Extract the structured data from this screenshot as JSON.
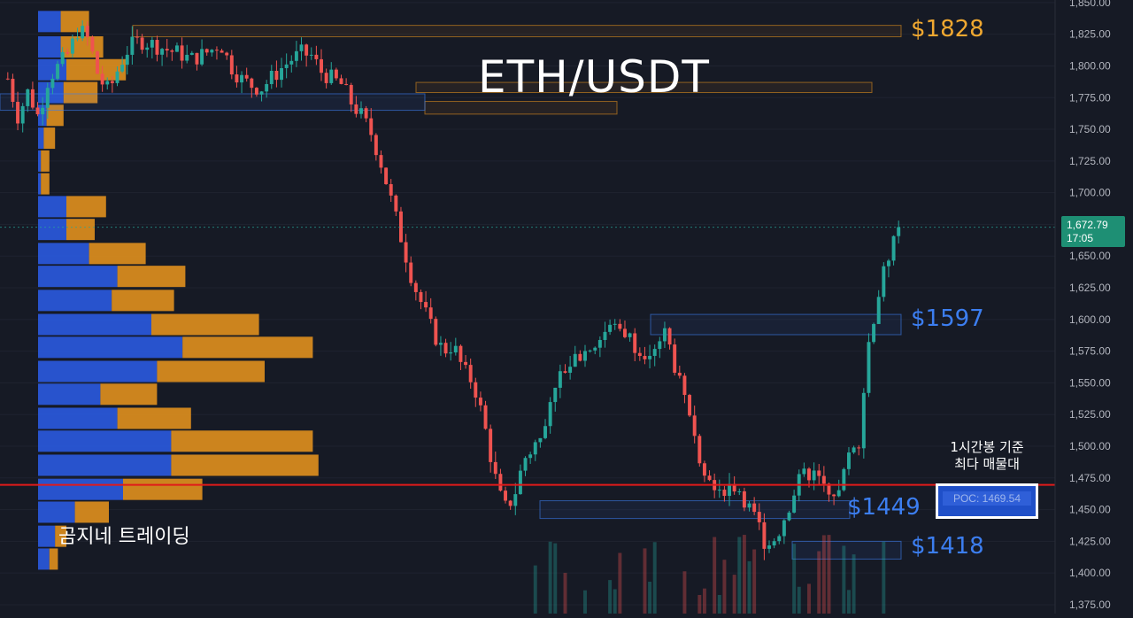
{
  "chart_data": {
    "type": "candlestick",
    "symbol": "ETH/USDT",
    "y_axis": {
      "ticks": [
        "1,850.00",
        "1,825.00",
        "1,800.00",
        "1,775.00",
        "1,750.00",
        "1,725.00",
        "1,700.00",
        "1,675.00",
        "1,650.00",
        "1,625.00",
        "1,600.00",
        "1,575.00",
        "1,550.00",
        "1,525.00",
        "1,500.00",
        "1,475.00",
        "1,450.00",
        "1,425.00",
        "1,400.00",
        "1,375.00"
      ],
      "range": [
        1368,
        1852
      ]
    },
    "last_price": {
      "price": "1,672.79",
      "countdown": "17:05",
      "value": 1672.79
    },
    "price_path": [
      1790,
      1760,
      1780,
      1760,
      1790,
      1800,
      1810,
      1830,
      1820,
      1790,
      1780,
      1800,
      1815,
      1820,
      1818,
      1815,
      1812,
      1810,
      1805,
      1808,
      1812,
      1818,
      1800,
      1790,
      1785,
      1782,
      1790,
      1798,
      1805,
      1810,
      1808,
      1795,
      1790,
      1785,
      1770,
      1760,
      1745,
      1720,
      1690,
      1660,
      1630,
      1610,
      1590,
      1575,
      1580,
      1560,
      1550,
      1520,
      1480,
      1450,
      1460,
      1490,
      1500,
      1520,
      1550,
      1560,
      1570,
      1575,
      1580,
      1590,
      1595,
      1590,
      1580,
      1575,
      1580,
      1590,
      1560,
      1530,
      1500,
      1480,
      1470,
      1465,
      1470,
      1455,
      1440,
      1420,
      1430,
      1450,
      1470,
      1480,
      1475,
      1470,
      1460,
      1490,
      1500,
      1580,
      1620,
      1650,
      1672
    ],
    "levels": [
      {
        "label": "$1828",
        "price": 1828,
        "color": "#f0a830"
      },
      {
        "label": "$1597",
        "price": 1597,
        "color": "#3c7ef0"
      },
      {
        "label": "$1449",
        "price": 1449,
        "color": "#3c7ef0"
      },
      {
        "label": "$1418",
        "price": 1418,
        "color": "#3c7ef0"
      }
    ],
    "volume_profile": [
      {
        "price": 1835,
        "buy": 0.08,
        "sell": 0.1
      },
      {
        "price": 1815,
        "buy": 0.08,
        "sell": 0.15
      },
      {
        "price": 1797,
        "buy": 0.1,
        "sell": 0.21
      },
      {
        "price": 1779,
        "buy": 0.09,
        "sell": 0.12
      },
      {
        "price": 1761,
        "buy": 0.03,
        "sell": 0.06
      },
      {
        "price": 1743,
        "buy": 0.02,
        "sell": 0.04
      },
      {
        "price": 1725,
        "buy": 0.01,
        "sell": 0.03
      },
      {
        "price": 1707,
        "buy": 0.01,
        "sell": 0.03
      },
      {
        "price": 1689,
        "buy": 0.1,
        "sell": 0.14
      },
      {
        "price": 1671,
        "buy": 0.1,
        "sell": 0.1
      },
      {
        "price": 1652,
        "buy": 0.18,
        "sell": 0.2
      },
      {
        "price": 1634,
        "buy": 0.28,
        "sell": 0.24
      },
      {
        "price": 1615,
        "buy": 0.26,
        "sell": 0.22
      },
      {
        "price": 1596,
        "buy": 0.4,
        "sell": 0.38
      },
      {
        "price": 1578,
        "buy": 0.51,
        "sell": 0.46
      },
      {
        "price": 1559,
        "buy": 0.42,
        "sell": 0.38
      },
      {
        "price": 1541,
        "buy": 0.22,
        "sell": 0.2
      },
      {
        "price": 1522,
        "buy": 0.28,
        "sell": 0.26
      },
      {
        "price": 1504,
        "buy": 0.47,
        "sell": 0.5
      },
      {
        "price": 1485,
        "buy": 0.47,
        "sell": 0.52
      },
      {
        "price": 1466,
        "buy": 0.3,
        "sell": 0.28
      },
      {
        "price": 1448,
        "buy": 0.13,
        "sell": 0.12
      },
      {
        "price": 1429,
        "buy": 0.06,
        "sell": 0.04
      },
      {
        "price": 1411,
        "buy": 0.04,
        "sell": 0.03
      }
    ],
    "poc": {
      "label": "POC: 1469.54",
      "price": 1469.54,
      "note": [
        "1시간봉 기준",
        "최다 매물대"
      ]
    }
  },
  "colors": {
    "background": "#161a25",
    "up": "#26a69a",
    "down": "#ef5350",
    "profile_buy": "#2a5ae0",
    "profile_sell": "#e0901e",
    "poc_line": "#e01a1a"
  },
  "watermark": "곰지네 트레이딩"
}
